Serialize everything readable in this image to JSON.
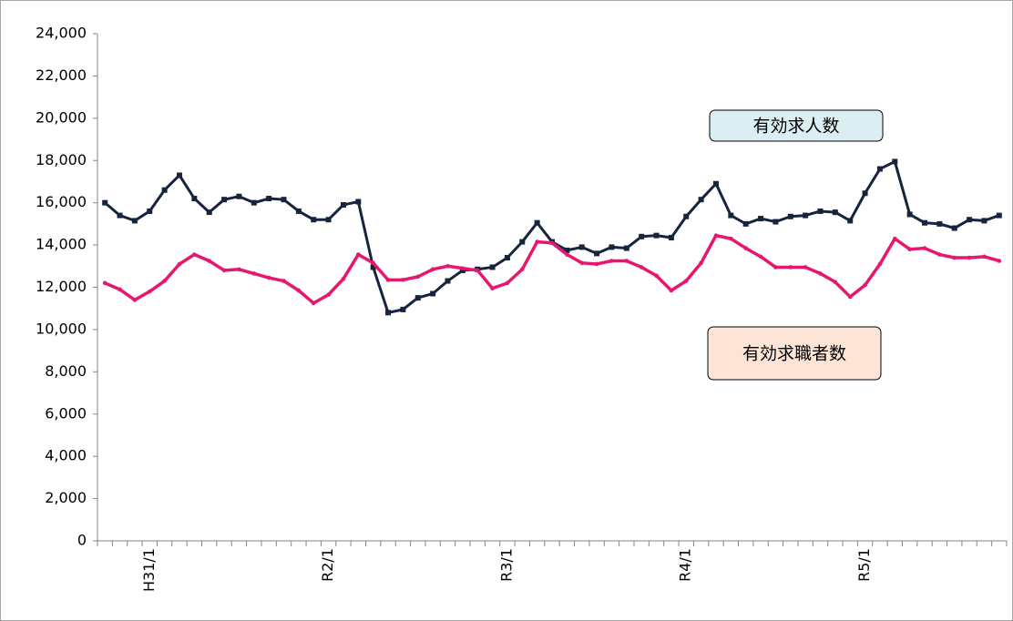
{
  "chart_data": {
    "type": "line",
    "categories": [
      null,
      null,
      null,
      "H31/1",
      null,
      null,
      null,
      null,
      null,
      null,
      null,
      null,
      null,
      null,
      null,
      "R2/1",
      null,
      null,
      null,
      null,
      null,
      null,
      null,
      null,
      null,
      null,
      null,
      "R3/1",
      null,
      null,
      null,
      null,
      null,
      null,
      null,
      null,
      null,
      null,
      null,
      "R4/1",
      null,
      null,
      null,
      null,
      null,
      null,
      null,
      null,
      null,
      null,
      null,
      "R5/1",
      null,
      null,
      null,
      null,
      null,
      null,
      null,
      null,
      null
    ],
    "series": [
      {
        "name": "有効求人数",
        "color": "#16243e",
        "values": [
          16000,
          15400,
          15150,
          15600,
          16600,
          17300,
          16200,
          15550,
          16150,
          16300,
          16000,
          16200,
          16150,
          15600,
          15200,
          15200,
          15900,
          16050,
          12950,
          10800,
          10950,
          11500,
          11700,
          12300,
          12800,
          12850,
          12950,
          13400,
          14150,
          15050,
          14150,
          13750,
          13900,
          13600,
          13900,
          13850,
          14400,
          14450,
          14350,
          15350,
          16150,
          16900,
          15400,
          15000,
          15250,
          15100,
          15350,
          15400,
          15600,
          15550,
          15150,
          16450,
          17600,
          17950,
          15450,
          15050,
          15000,
          14800,
          15200,
          15150,
          15400
        ]
      },
      {
        "name": "有効求職者数",
        "color": "#e8176e",
        "values": [
          12200,
          11900,
          11400,
          11800,
          12300,
          13100,
          13550,
          13250,
          12800,
          12850,
          12650,
          12450,
          12300,
          11850,
          11250,
          11650,
          12400,
          13550,
          13150,
          12350,
          12350,
          12500,
          12850,
          13000,
          12900,
          12800,
          11950,
          12200,
          12850,
          14150,
          14100,
          13550,
          13150,
          13100,
          13250,
          13250,
          12950,
          12550,
          11850,
          12300,
          13150,
          14450,
          14300,
          13850,
          13450,
          12950,
          12950,
          12950,
          12650,
          12250,
          11550,
          12100,
          13100,
          14300,
          13800,
          13850,
          13550,
          13400,
          13400,
          13450,
          13250
        ]
      }
    ],
    "ylim": [
      0,
      24000
    ],
    "yticks": [
      0,
      {
        "value": 2000,
        "label": "2,000"
      },
      {
        "value": 4000,
        "label": "4,000"
      },
      {
        "value": 6000,
        "label": "6,000"
      },
      {
        "value": 8000,
        "label": "8,000"
      },
      {
        "value": 10000,
        "label": "10,000"
      },
      {
        "value": 12000,
        "label": "12,000"
      },
      {
        "value": 14000,
        "label": "14,000"
      },
      {
        "value": 16000,
        "label": "16,000"
      },
      {
        "value": 18000,
        "label": "18,000"
      },
      {
        "value": 20000,
        "label": "20,000"
      },
      {
        "value": 22000,
        "label": "22,000"
      },
      {
        "value": 24000,
        "label": "24,000"
      }
    ],
    "grid": false
  }
}
